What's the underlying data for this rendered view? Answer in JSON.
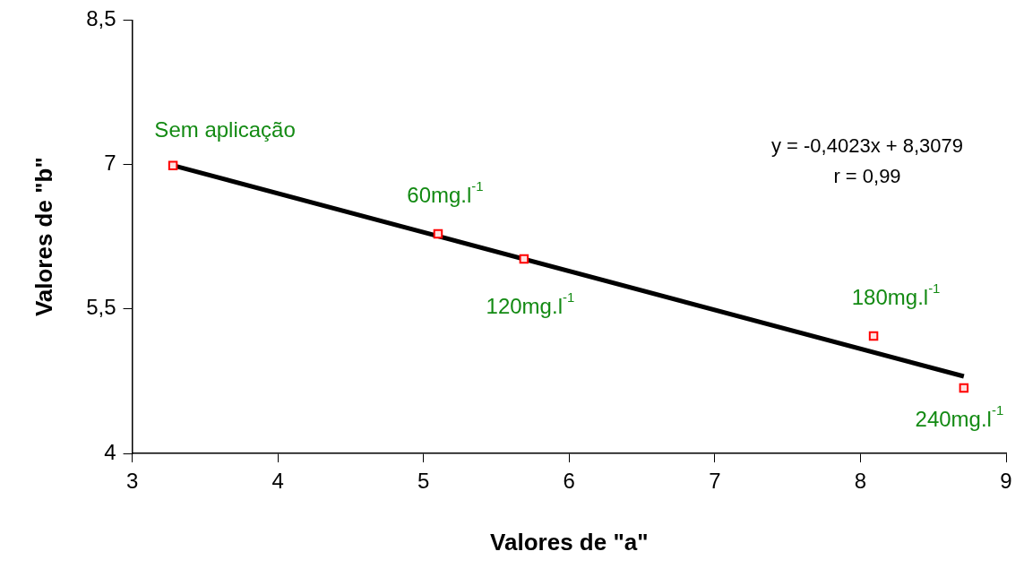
{
  "chart_data": {
    "type": "scatter",
    "xlabel": "Valores de \"a\"",
    "ylabel": "Valores de \"b\"",
    "x": [
      3.28,
      5.1,
      5.69,
      8.09,
      8.71
    ],
    "series": [
      {
        "type": "scatter",
        "color": "#ff0000",
        "marker": "square",
        "values": [
          6.99,
          6.28,
          6.02,
          5.22,
          4.68
        ]
      },
      {
        "type": "line",
        "color": "#000000",
        "marker": "none",
        "x": [
          3.28,
          8.71
        ],
        "values": [
          6.99,
          4.8
        ]
      }
    ],
    "xlim": [
      3,
      9
    ],
    "xticks": [
      3,
      4,
      5,
      6,
      7,
      8,
      9
    ],
    "ylim": [
      4,
      8.5
    ],
    "yticks": [
      {
        "value": 4,
        "label": "4"
      },
      {
        "value": 5.5,
        "label": "5,5"
      },
      {
        "value": 7,
        "label": "7"
      },
      {
        "value": 8.5,
        "label": "8,5"
      }
    ],
    "grid": false,
    "legend": false,
    "annotations": [
      {
        "text": "Sem aplicação",
        "x": 3.28,
        "y": 6.99
      },
      {
        "text": "60mg.l$^{-1}$",
        "x": 5.1,
        "y": 6.28
      },
      {
        "text": "120mg.l$^{-1}$",
        "x": 5.69,
        "y": 6.02
      },
      {
        "text": "180mg.l$^{-1}$",
        "x": 8.09,
        "y": 5.22
      },
      {
        "text": "240mg.l$^{-1}$",
        "x": 8.71,
        "y": 4.68
      },
      "y = -0,4023x + 8,3079",
      "r = 0,99"
    ]
  }
}
